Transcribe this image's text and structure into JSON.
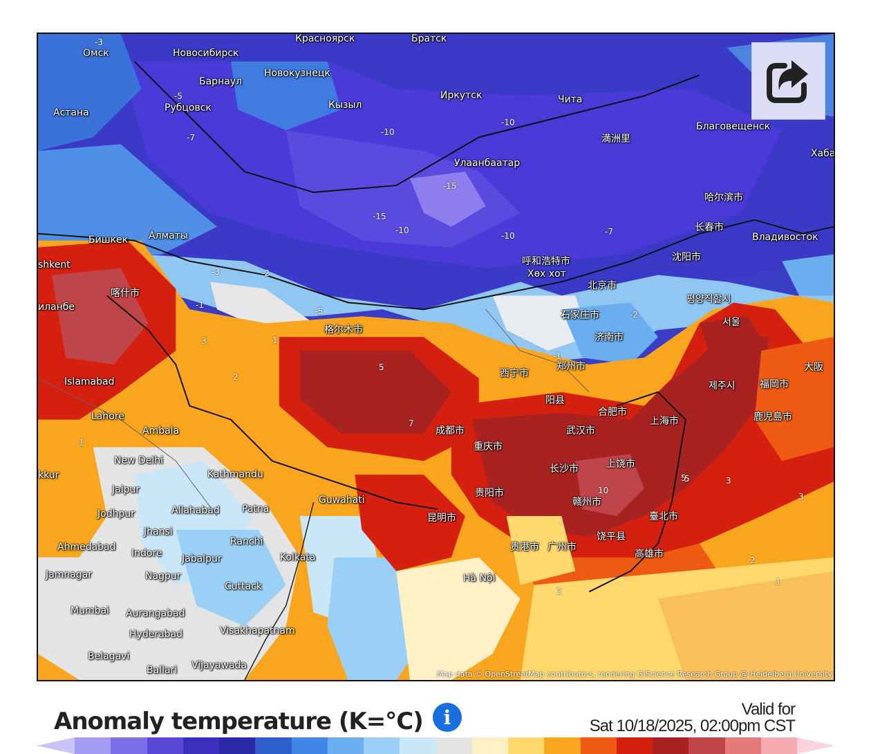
{
  "map": {
    "attribution": "Map data © OpenStreetMap contributors, rendering GIScience Research Group @ Heidelberg University",
    "places": [
      {
        "name": "Омск"
      },
      {
        "name": "Новосибирск"
      },
      {
        "name": "Красноярск"
      },
      {
        "name": "Братск"
      },
      {
        "name": "Барнаул"
      },
      {
        "name": "Новокузнецк"
      },
      {
        "name": "Астана"
      },
      {
        "name": "Рубцовск"
      },
      {
        "name": "Кызыл"
      },
      {
        "name": "Иркутск"
      },
      {
        "name": "Чита"
      },
      {
        "name": "Благовещенск"
      },
      {
        "name": "Хабаро"
      },
      {
        "name": "満洲里"
      },
      {
        "name": "Улаанбаатар"
      },
      {
        "name": "哈尔滨市"
      },
      {
        "name": "长春市"
      },
      {
        "name": "Владивосток"
      },
      {
        "name": "Бишкек"
      },
      {
        "name": "Алматы"
      },
      {
        "name": "shkent"
      },
      {
        "name": "呼和浩特市"
      },
      {
        "name": "Хөх хот"
      },
      {
        "name": "沈阳市"
      },
      {
        "name": "北京市"
      },
      {
        "name": "평양직할시"
      },
      {
        "name": "喀什市"
      },
      {
        "name": "иланбе"
      },
      {
        "name": "石家庄市"
      },
      {
        "name": "서울"
      },
      {
        "name": "济南市"
      },
      {
        "name": "格尔木市"
      },
      {
        "name": "西宁市"
      },
      {
        "name": "郑州市"
      },
      {
        "name": "Islamabad"
      },
      {
        "name": "제주시"
      },
      {
        "name": "福岡市"
      },
      {
        "name": "阳县"
      },
      {
        "name": "合肥市"
      },
      {
        "name": "Lahore"
      },
      {
        "name": "上海市"
      },
      {
        "name": "鹿児島市"
      },
      {
        "name": "Ambala"
      },
      {
        "name": "成都市"
      },
      {
        "name": "武汉市"
      },
      {
        "name": "重庆市"
      },
      {
        "name": "New Delhi"
      },
      {
        "name": "长沙市"
      },
      {
        "name": "上饶市"
      },
      {
        "name": "kkur"
      },
      {
        "name": "Kathmandu"
      },
      {
        "name": "Jaipur"
      },
      {
        "name": "Guwahati"
      },
      {
        "name": "贵阳市"
      },
      {
        "name": "Jodhpur"
      },
      {
        "name": "Allahabad"
      },
      {
        "name": "Patna"
      },
      {
        "name": "赣州市"
      },
      {
        "name": "昆明市"
      },
      {
        "name": "臺北市"
      },
      {
        "name": "Jhansi"
      },
      {
        "name": "Ranchi"
      },
      {
        "name": "Ahmedabad"
      },
      {
        "name": "Indore"
      },
      {
        "name": "广州市"
      },
      {
        "name": "饶平县"
      },
      {
        "name": "Jabalpur"
      },
      {
        "name": "Kolkata"
      },
      {
        "name": "高雄市"
      },
      {
        "name": "Jamnagar"
      },
      {
        "name": "Nagpur"
      },
      {
        "name": "Hà Nội"
      },
      {
        "name": "Cuttack"
      },
      {
        "name": "Mumbai"
      },
      {
        "name": "Aurangabad"
      },
      {
        "name": "Hyderabad"
      },
      {
        "name": "Visakhapatnam"
      },
      {
        "name": "Belagavi"
      },
      {
        "name": "Ballari"
      },
      {
        "name": "Vijayawada"
      },
      {
        "name": "贵港市"
      },
      {
        "name": "大阪"
      }
    ],
    "isolines": [
      {
        "v": "-3"
      },
      {
        "v": "-5"
      },
      {
        "v": "-7"
      },
      {
        "v": "-10"
      },
      {
        "v": "-15"
      },
      {
        "v": "-15"
      },
      {
        "v": "-10"
      },
      {
        "v": "-10"
      },
      {
        "v": "-10"
      },
      {
        "v": "-7"
      },
      {
        "v": "-5"
      },
      {
        "v": "-3"
      },
      {
        "v": "-2"
      },
      {
        "v": "-1"
      },
      {
        "v": "1"
      },
      {
        "v": "2"
      },
      {
        "v": "3"
      },
      {
        "v": "5"
      },
      {
        "v": "7"
      },
      {
        "v": "10"
      },
      {
        "v": "5"
      },
      {
        "v": "3"
      },
      {
        "v": "2"
      },
      {
        "v": "1"
      },
      {
        "v": "-1"
      },
      {
        "v": "-2"
      },
      {
        "v": "1"
      },
      {
        "v": "2"
      },
      {
        "v": "3"
      },
      {
        "v": "5"
      }
    ]
  },
  "legend": {
    "title": "Anomaly temperature (K=°C)",
    "info_icon": "info-icon",
    "valid_for_label": "Valid for",
    "valid_for_time": "Sat 10/18/2025, 02:00pm CST",
    "colors": [
      "#a59cf6",
      "#7c6fe8",
      "#5a49d6",
      "#3d2fbe",
      "#2a2aa6",
      "#2f5fcf",
      "#3f86e6",
      "#6aaef0",
      "#9bd0f6",
      "#c9e7f8",
      "#e4e4e4",
      "#fff0c6",
      "#ffd86e",
      "#f9a51d",
      "#ee5a12",
      "#d5200f",
      "#a82222",
      "#c0454a",
      "#e47a7a",
      "#f7aab0"
    ]
  },
  "share_button": {
    "icon": "share-icon"
  }
}
